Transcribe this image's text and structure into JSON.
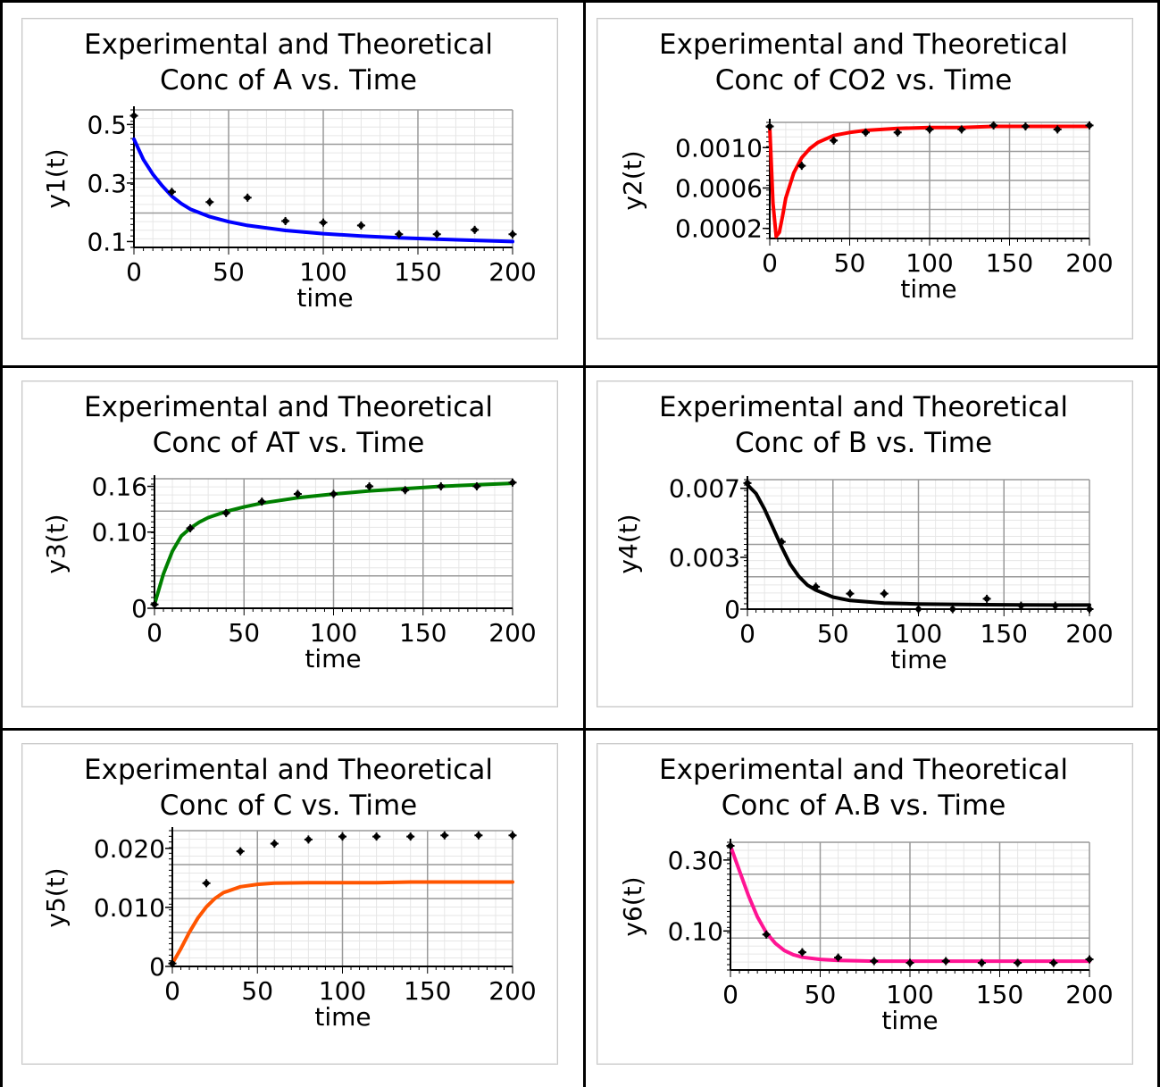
{
  "colors": {
    "grid_major": "#999999",
    "grid_minor": "#e6e6e6",
    "points": "#000000"
  },
  "chart_data": [
    {
      "type": "line",
      "title": [
        "Experimental and Theoretical",
        "Conc of A vs. Time"
      ],
      "xlabel": "time",
      "ylabel": "y1(t)",
      "xlim": [
        0,
        200
      ],
      "ylim": [
        0.08,
        0.55
      ],
      "xticks": [
        0,
        50,
        100,
        150,
        200
      ],
      "xtick_labels": [
        "0",
        "50",
        "100",
        "150",
        "200"
      ],
      "yticks": [
        0.1,
        0.3,
        0.5
      ],
      "ytick_labels": [
        "0.1",
        "0.3",
        "0.5"
      ],
      "line_color": "#0000ff",
      "theory": {
        "x": [
          0,
          5,
          10,
          15,
          20,
          25,
          30,
          40,
          50,
          60,
          80,
          100,
          120,
          140,
          160,
          180,
          200
        ],
        "y": [
          0.45,
          0.38,
          0.33,
          0.29,
          0.255,
          0.23,
          0.21,
          0.185,
          0.168,
          0.155,
          0.138,
          0.127,
          0.119,
          0.113,
          0.108,
          0.104,
          0.1
        ]
      },
      "experimental": {
        "x": [
          0,
          20,
          40,
          60,
          80,
          100,
          120,
          140,
          160,
          180,
          200
        ],
        "y": [
          0.53,
          0.27,
          0.235,
          0.25,
          0.17,
          0.165,
          0.155,
          0.125,
          0.125,
          0.14,
          0.125
        ]
      }
    },
    {
      "type": "line",
      "title": [
        "Experimental and Theoretical",
        "Conc of CO2 vs. Time"
      ],
      "xlabel": "time",
      "ylabel": "y2(t)",
      "xlim": [
        0,
        200
      ],
      "ylim": [
        0.0001,
        0.00125
      ],
      "xticks": [
        0,
        50,
        100,
        150,
        200
      ],
      "xtick_labels": [
        "0",
        "50",
        "100",
        "150",
        "200"
      ],
      "yticks": [
        0.0002,
        0.0006,
        0.001
      ],
      "ytick_labels": [
        "0.0002",
        "0.0006",
        "0.0010"
      ],
      "line_color": "#ff0000",
      "theory": {
        "x": [
          0,
          2,
          4,
          6,
          8,
          10,
          15,
          20,
          25,
          30,
          40,
          50,
          60,
          80,
          100,
          120,
          140,
          160,
          180,
          200
        ],
        "y": [
          0.0012,
          0.00045,
          0.00012,
          0.00016,
          0.00032,
          0.0005,
          0.00075,
          0.0009,
          0.00099,
          0.00105,
          0.00112,
          0.00115,
          0.00117,
          0.00119,
          0.0012,
          0.0012,
          0.00121,
          0.00121,
          0.00121,
          0.00121
        ]
      },
      "experimental": {
        "x": [
          0,
          20,
          40,
          60,
          80,
          100,
          120,
          140,
          160,
          180,
          200
        ],
        "y": [
          0.00121,
          0.00082,
          0.00107,
          0.00115,
          0.00115,
          0.00118,
          0.00118,
          0.00122,
          0.00121,
          0.00118,
          0.00122
        ]
      }
    },
    {
      "type": "line",
      "title": [
        "Experimental and Theoretical",
        "Conc of AT vs. Time"
      ],
      "xlabel": "time",
      "ylabel": "y3(t)",
      "xlim": [
        0,
        200
      ],
      "ylim": [
        0,
        0.17
      ],
      "xticks": [
        0,
        50,
        100,
        150,
        200
      ],
      "xtick_labels": [
        "0",
        "50",
        "100",
        "150",
        "200"
      ],
      "yticks": [
        0,
        0.1,
        0.16
      ],
      "ytick_labels": [
        "0",
        "0.10",
        "0.16"
      ],
      "line_color": "#008000",
      "theory": {
        "x": [
          0,
          5,
          10,
          15,
          20,
          25,
          30,
          40,
          50,
          60,
          80,
          100,
          120,
          140,
          160,
          180,
          200
        ],
        "y": [
          0.005,
          0.045,
          0.075,
          0.095,
          0.105,
          0.113,
          0.119,
          0.127,
          0.133,
          0.138,
          0.145,
          0.15,
          0.154,
          0.157,
          0.16,
          0.162,
          0.164
        ]
      },
      "experimental": {
        "x": [
          0,
          20,
          40,
          60,
          80,
          100,
          120,
          140,
          160,
          180,
          200
        ],
        "y": [
          0.005,
          0.105,
          0.125,
          0.14,
          0.15,
          0.15,
          0.16,
          0.155,
          0.16,
          0.16,
          0.165
        ]
      }
    },
    {
      "type": "line",
      "title": [
        "Experimental and Theoretical",
        "Conc of B vs. Time"
      ],
      "xlabel": "time",
      "ylabel": "y4(t)",
      "xlim": [
        0,
        200
      ],
      "ylim": [
        0,
        0.0075
      ],
      "xticks": [
        0,
        50,
        100,
        150,
        200
      ],
      "xtick_labels": [
        "0",
        "50",
        "100",
        "150",
        "200"
      ],
      "yticks": [
        0,
        0.003,
        0.007
      ],
      "ytick_labels": [
        "0",
        "0.003",
        "0.007"
      ],
      "line_color": "#000000",
      "theory": {
        "x": [
          0,
          5,
          10,
          15,
          20,
          25,
          30,
          35,
          40,
          50,
          60,
          80,
          100,
          120,
          140,
          160,
          180,
          200
        ],
        "y": [
          0.0072,
          0.0067,
          0.0058,
          0.0047,
          0.0036,
          0.0026,
          0.0019,
          0.0014,
          0.0011,
          0.0007,
          0.0005,
          0.00035,
          0.0003,
          0.00028,
          0.00026,
          0.00025,
          0.00024,
          0.00024
        ]
      },
      "experimental": {
        "x": [
          0,
          20,
          40,
          60,
          80,
          100,
          120,
          140,
          160,
          180,
          200
        ],
        "y": [
          0.0073,
          0.0039,
          0.0013,
          0.0009,
          0.0009,
          0.0,
          0.0,
          0.0006,
          0.0002,
          0.0002,
          0.0
        ]
      }
    },
    {
      "type": "line",
      "title": [
        "Experimental and Theoretical",
        "Conc of C vs. Time"
      ],
      "xlabel": "time",
      "ylabel": "y5(t)",
      "xlim": [
        0,
        200
      ],
      "ylim": [
        0,
        0.023
      ],
      "xticks": [
        0,
        50,
        100,
        150,
        200
      ],
      "xtick_labels": [
        "0",
        "50",
        "100",
        "150",
        "200"
      ],
      "yticks": [
        0,
        0.01,
        0.02
      ],
      "ytick_labels": [
        "0",
        "0.010",
        "0.020"
      ],
      "line_color": "#ff5500",
      "theory": {
        "x": [
          0,
          5,
          10,
          15,
          20,
          25,
          30,
          40,
          50,
          60,
          80,
          100,
          120,
          140,
          160,
          180,
          200
        ],
        "y": [
          0.0005,
          0.003,
          0.0058,
          0.0082,
          0.0101,
          0.0115,
          0.0125,
          0.0135,
          0.0139,
          0.0141,
          0.0142,
          0.0142,
          0.0142,
          0.0143,
          0.0143,
          0.0143,
          0.0143
        ]
      },
      "experimental": {
        "x": [
          0,
          20,
          40,
          60,
          80,
          100,
          120,
          140,
          160,
          180,
          200
        ],
        "y": [
          0.0005,
          0.0141,
          0.0195,
          0.0208,
          0.0215,
          0.022,
          0.022,
          0.022,
          0.0222,
          0.0222,
          0.0222
        ]
      }
    },
    {
      "type": "line",
      "title": [
        "Experimental and Theoretical",
        "Conc of A.B vs. Time"
      ],
      "xlabel": "time",
      "ylabel": "y6(t)",
      "xlim": [
        0,
        200
      ],
      "ylim": [
        -0.01,
        0.35
      ],
      "xticks": [
        0,
        50,
        100,
        150,
        200
      ],
      "xtick_labels": [
        "0",
        "50",
        "100",
        "150",
        "200"
      ],
      "yticks": [
        0.1,
        0.3
      ],
      "ytick_labels": [
        "0.10",
        "0.30"
      ],
      "line_color": "#ff1493",
      "theory": {
        "x": [
          0,
          5,
          10,
          15,
          20,
          25,
          30,
          35,
          40,
          50,
          60,
          80,
          100,
          120,
          140,
          160,
          180,
          200
        ],
        "y": [
          0.34,
          0.27,
          0.2,
          0.14,
          0.095,
          0.065,
          0.045,
          0.033,
          0.026,
          0.02,
          0.017,
          0.015,
          0.015,
          0.015,
          0.015,
          0.015,
          0.015,
          0.015
        ]
      },
      "experimental": {
        "x": [
          0,
          20,
          40,
          60,
          80,
          100,
          120,
          140,
          160,
          180,
          200
        ],
        "y": [
          0.34,
          0.09,
          0.04,
          0.025,
          0.015,
          0.01,
          0.015,
          0.01,
          0.01,
          0.01,
          0.02
        ]
      }
    }
  ]
}
